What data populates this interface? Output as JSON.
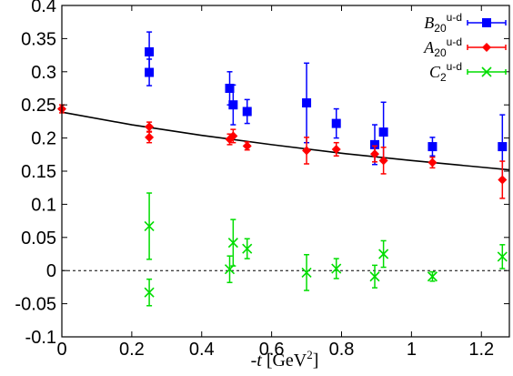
{
  "chart_data": {
    "type": "scatter",
    "title": "",
    "xlabel": {
      "prefix": "-",
      "variable": "t",
      "unit_open": " [GeV",
      "unit_exp": "2",
      "unit_close": "]"
    },
    "ylabel": "",
    "xlim": [
      0,
      1.28
    ],
    "ylim": [
      -0.1,
      0.4
    ],
    "x_ticks": [
      0,
      0.2,
      0.4,
      0.6,
      0.8,
      1,
      1.2
    ],
    "x_tick_labels": [
      "0",
      "0.2",
      "0.4",
      "0.6",
      "0.8",
      "1",
      "1.2"
    ],
    "y_ticks": [
      -0.1,
      -0.05,
      0,
      0.05,
      0.1,
      0.15,
      0.2,
      0.25,
      0.3,
      0.35,
      0.4
    ],
    "y_tick_labels": [
      "-0.1",
      "-0.05",
      "0",
      "0.05",
      "0.1",
      "0.15",
      "0.2",
      "0.25",
      "0.3",
      "0.35",
      "0.4"
    ],
    "grid": false,
    "legend_position": "top-right",
    "zero_line": "dotted",
    "series": [
      {
        "name": {
          "base": "B",
          "sub": "20",
          "sup": "u-d"
        },
        "color": "#0000ff",
        "marker": "square",
        "points": [
          {
            "x": 0.25,
            "y": 0.33,
            "err": 0.03
          },
          {
            "x": 0.25,
            "y": 0.299,
            "err": 0.02
          },
          {
            "x": 0.48,
            "y": 0.275,
            "err": 0.025
          },
          {
            "x": 0.49,
            "y": 0.25,
            "err": 0.03
          },
          {
            "x": 0.53,
            "y": 0.24,
            "err": 0.018
          },
          {
            "x": 0.7,
            "y": 0.253,
            "err": 0.06
          },
          {
            "x": 0.785,
            "y": 0.222,
            "err": 0.022
          },
          {
            "x": 0.895,
            "y": 0.19,
            "err": 0.03
          },
          {
            "x": 0.92,
            "y": 0.209,
            "err": 0.045
          },
          {
            "x": 1.06,
            "y": 0.187,
            "err": 0.014
          },
          {
            "x": 1.26,
            "y": 0.187,
            "err": 0.048
          }
        ]
      },
      {
        "name": {
          "base": "A",
          "sub": "20",
          "sup": "u-d"
        },
        "color": "#ff0000",
        "marker": "diamond",
        "points": [
          {
            "x": 0.0,
            "y": 0.244,
            "err": 0.006
          },
          {
            "x": 0.25,
            "y": 0.217,
            "err": 0.007
          },
          {
            "x": 0.25,
            "y": 0.201,
            "err": 0.008
          },
          {
            "x": 0.48,
            "y": 0.198,
            "err": 0.008
          },
          {
            "x": 0.49,
            "y": 0.203,
            "err": 0.01
          },
          {
            "x": 0.53,
            "y": 0.188,
            "err": 0.006
          },
          {
            "x": 0.7,
            "y": 0.181,
            "err": 0.02
          },
          {
            "x": 0.785,
            "y": 0.183,
            "err": 0.01
          },
          {
            "x": 0.895,
            "y": 0.176,
            "err": 0.012
          },
          {
            "x": 0.92,
            "y": 0.166,
            "err": 0.02
          },
          {
            "x": 1.06,
            "y": 0.163,
            "err": 0.008
          },
          {
            "x": 1.26,
            "y": 0.137,
            "err": 0.028
          }
        ]
      },
      {
        "name": {
          "base": "C",
          "sub": "2",
          "sup": "u-d"
        },
        "color": "#00dd00",
        "marker": "x",
        "points": [
          {
            "x": 0.25,
            "y": 0.067,
            "err": 0.05
          },
          {
            "x": 0.25,
            "y": -0.033,
            "err": 0.02
          },
          {
            "x": 0.48,
            "y": 0.002,
            "err": 0.02
          },
          {
            "x": 0.49,
            "y": 0.042,
            "err": 0.035
          },
          {
            "x": 0.53,
            "y": 0.033,
            "err": 0.015
          },
          {
            "x": 0.7,
            "y": -0.003,
            "err": 0.027
          },
          {
            "x": 0.785,
            "y": 0.003,
            "err": 0.015
          },
          {
            "x": 0.895,
            "y": -0.009,
            "err": 0.017
          },
          {
            "x": 0.92,
            "y": 0.025,
            "err": 0.02
          },
          {
            "x": 1.06,
            "y": -0.009,
            "err": 0.007
          },
          {
            "x": 1.26,
            "y": 0.021,
            "err": 0.018
          }
        ]
      }
    ],
    "fit_curve": {
      "color": "#000000",
      "points": [
        [
          0,
          0.239
        ],
        [
          0.2,
          0.22
        ],
        [
          0.4,
          0.204
        ],
        [
          0.6,
          0.19
        ],
        [
          0.8,
          0.177
        ],
        [
          1.0,
          0.166
        ],
        [
          1.2,
          0.156
        ],
        [
          1.28,
          0.152
        ]
      ]
    }
  }
}
